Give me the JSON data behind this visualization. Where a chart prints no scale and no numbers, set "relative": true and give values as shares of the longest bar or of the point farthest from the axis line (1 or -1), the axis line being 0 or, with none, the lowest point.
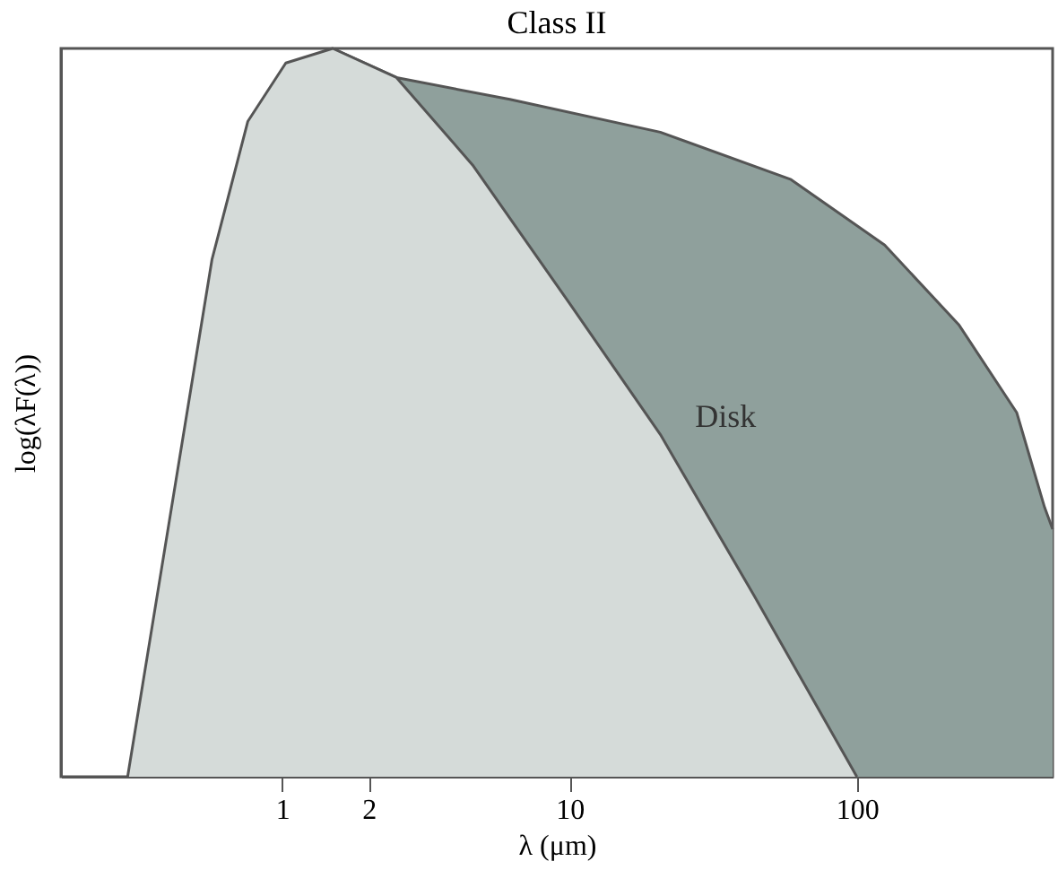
{
  "chart_data": {
    "type": "area",
    "title": "Class II",
    "xlabel": "λ (μm)",
    "ylabel": "log(λF(λ))",
    "relative": true,
    "log": "x",
    "xlim": [
      0.17,
      480
    ],
    "xticks": [
      1,
      2,
      10,
      100
    ],
    "grid": false,
    "series": [
      {
        "name": "Disk",
        "color": "#8fa09c",
        "x": [
          1.5,
          2.5,
          6.2,
          20.7,
          59,
          125,
          227,
          360,
          450,
          480
        ],
        "values": [
          1,
          0.96,
          0.93,
          0.885,
          0.82,
          0.73,
          0.62,
          0.5,
          0.37,
          0.34
        ]
      },
      {
        "color": "#d5dbd9",
        "x": [
          0.29,
          0.57,
          0.76,
          1.03,
          1.5,
          2.5,
          4.6,
          10,
          20.7,
          43.7,
          100
        ],
        "values": [
          0,
          0.71,
          0.9,
          0.98,
          1,
          0.96,
          0.84,
          0.65,
          0.47,
          0.25,
          0
        ]
      }
    ]
  }
}
